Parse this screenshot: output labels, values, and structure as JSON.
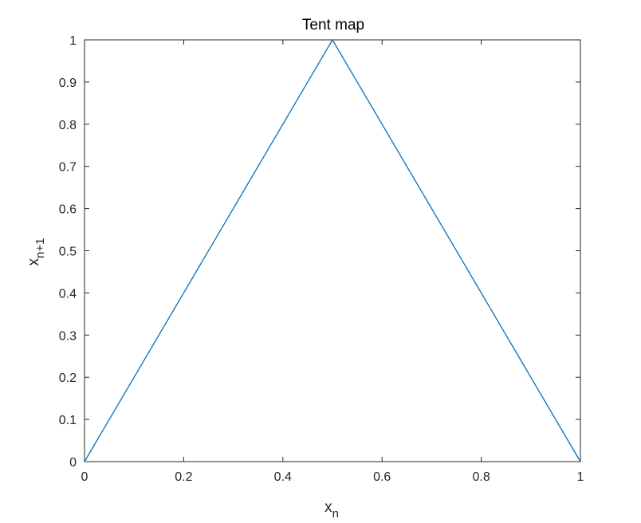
{
  "chart_data": {
    "type": "line",
    "title": "Tent map",
    "xlabel": {
      "base": "x",
      "sub": "n"
    },
    "ylabel": {
      "base": "x",
      "sub": "n+1"
    },
    "xlim": [
      0,
      1
    ],
    "ylim": [
      0,
      1
    ],
    "xticks": [
      "0",
      "0.2",
      "0.4",
      "0.6",
      "0.8",
      "1"
    ],
    "yticks": [
      "0",
      "0.1",
      "0.2",
      "0.3",
      "0.4",
      "0.5",
      "0.6",
      "0.7",
      "0.8",
      "0.9",
      "1"
    ],
    "grid": false,
    "series": [
      {
        "x": [
          0,
          0.5,
          1
        ],
        "y": [
          0,
          1,
          0
        ],
        "color": "#0072BD"
      }
    ],
    "axis_color": "#262626"
  }
}
